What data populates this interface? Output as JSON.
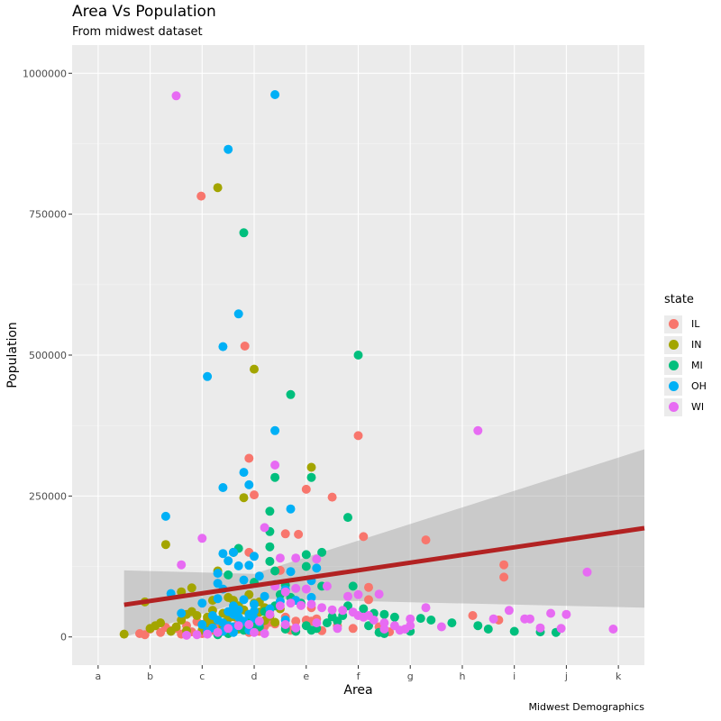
{
  "chart_data": {
    "type": "scatter",
    "title": "Area Vs Population",
    "subtitle": "From midwest dataset",
    "caption": "Midwest Demographics",
    "xlabel": "Area",
    "ylabel": "Population",
    "x_categories": [
      "a",
      "b",
      "c",
      "d",
      "e",
      "f",
      "g",
      "h",
      "i",
      "j",
      "k"
    ],
    "xlim": [
      -0.5,
      10.5
    ],
    "ylim": [
      -50000,
      1050000
    ],
    "y_ticks": [
      0,
      250000,
      500000,
      750000,
      1000000
    ],
    "y_tick_labels": [
      "0",
      "250000",
      "500000",
      "750000",
      "1000000"
    ],
    "grid": true,
    "legend_title": "state",
    "legend_position": "right",
    "series": [
      {
        "name": "IL",
        "color": "#F8766D",
        "points": [
          [
            1.98,
            782000
          ],
          [
            2.82,
            516000
          ],
          [
            2.9,
            317000
          ],
          [
            3.0,
            252000
          ],
          [
            3.6,
            183000
          ],
          [
            3.85,
            182000
          ],
          [
            4.0,
            262000
          ],
          [
            4.5,
            248000
          ],
          [
            5.0,
            357000
          ],
          [
            5.1,
            178000
          ],
          [
            6.3,
            172000
          ],
          [
            7.8,
            128000
          ],
          [
            7.8,
            106000
          ],
          [
            5.2,
            88000
          ],
          [
            5.2,
            66000
          ],
          [
            7.7,
            30000
          ],
          [
            7.2,
            38000
          ],
          [
            4.0,
            30000
          ],
          [
            4.1,
            28000
          ],
          [
            3.6,
            35000
          ],
          [
            3.3,
            26000
          ],
          [
            3.0,
            40000
          ],
          [
            2.9,
            150000
          ],
          [
            3.5,
            118000
          ],
          [
            2.8,
            15000
          ],
          [
            2.6,
            10000
          ],
          [
            2.5,
            7000
          ],
          [
            2.3,
            22000
          ],
          [
            2.0,
            6000
          ],
          [
            1.8,
            9000
          ],
          [
            1.6,
            5000
          ],
          [
            1.4,
            11000
          ],
          [
            1.2,
            8000
          ],
          [
            1.0,
            14000
          ],
          [
            0.8,
            6000
          ],
          [
            0.9,
            4000
          ],
          [
            1.3,
            17000
          ],
          [
            1.7,
            20000
          ],
          [
            2.2,
            12000
          ],
          [
            2.4,
            14000
          ],
          [
            2.7,
            25000
          ],
          [
            3.2,
            19000
          ],
          [
            3.4,
            23000
          ],
          [
            3.8,
            28000
          ],
          [
            4.2,
            32000
          ],
          [
            4.6,
            20000
          ],
          [
            4.9,
            15000
          ],
          [
            5.4,
            18000
          ],
          [
            3.1,
            10000
          ],
          [
            2.1,
            31000
          ],
          [
            1.9,
            27000
          ],
          [
            1.5,
            15000
          ],
          [
            2.9,
            8000
          ],
          [
            3.7,
            12000
          ],
          [
            4.3,
            11000
          ],
          [
            5.6,
            9000
          ],
          [
            3.9,
            56000
          ],
          [
            4.1,
            52000
          ],
          [
            3.3,
            48000
          ],
          [
            2.6,
            40000
          ]
        ]
      },
      {
        "name": "IN",
        "color": "#A3A500",
        "points": [
          [
            2.3,
            797000
          ],
          [
            3.0,
            475000
          ],
          [
            2.8,
            247000
          ],
          [
            4.1,
            301000
          ],
          [
            1.3,
            164000
          ],
          [
            2.6,
            150000
          ],
          [
            2.3,
            117000
          ],
          [
            1.8,
            87000
          ],
          [
            1.6,
            80000
          ],
          [
            2.2,
            65000
          ],
          [
            0.5,
            5000
          ],
          [
            0.9,
            62000
          ],
          [
            1.0,
            15000
          ],
          [
            1.1,
            20000
          ],
          [
            1.2,
            25000
          ],
          [
            1.4,
            10000
          ],
          [
            1.6,
            30000
          ],
          [
            1.7,
            40000
          ],
          [
            1.8,
            45000
          ],
          [
            1.9,
            38000
          ],
          [
            2.0,
            22000
          ],
          [
            2.1,
            35000
          ],
          [
            2.2,
            28000
          ],
          [
            2.4,
            42000
          ],
          [
            2.5,
            33000
          ],
          [
            2.6,
            36000
          ],
          [
            2.7,
            55000
          ],
          [
            2.8,
            48000
          ],
          [
            2.9,
            31000
          ],
          [
            3.0,
            60000
          ],
          [
            3.1,
            44000
          ],
          [
            3.2,
            29000
          ],
          [
            3.3,
            37000
          ],
          [
            3.4,
            26000
          ],
          [
            3.5,
            50000
          ],
          [
            2.0,
            12000
          ],
          [
            1.5,
            18000
          ],
          [
            2.4,
            19000
          ],
          [
            2.7,
            14000
          ],
          [
            3.2,
            52000
          ],
          [
            2.5,
            70000
          ],
          [
            2.9,
            75000
          ],
          [
            3.1,
            62000
          ],
          [
            3.6,
            20000
          ],
          [
            2.1,
            24000
          ],
          [
            1.7,
            11000
          ],
          [
            2.6,
            65000
          ],
          [
            2.2,
            47000
          ]
        ]
      },
      {
        "name": "MI",
        "color": "#00BF7D",
        "points": [
          [
            2.8,
            717000
          ],
          [
            5.0,
            500000
          ],
          [
            3.7,
            430000
          ],
          [
            4.1,
            283000
          ],
          [
            3.4,
            283000
          ],
          [
            3.3,
            223000
          ],
          [
            4.3,
            150000
          ],
          [
            4.0,
            146000
          ],
          [
            3.3,
            187000
          ],
          [
            3.3,
            160000
          ],
          [
            2.7,
            157000
          ],
          [
            4.8,
            212000
          ],
          [
            2.6,
            150000
          ],
          [
            2.5,
            110000
          ],
          [
            3.3,
            134000
          ],
          [
            3.4,
            117000
          ],
          [
            4.0,
            125000
          ],
          [
            4.3,
            90000
          ],
          [
            3.6,
            92000
          ],
          [
            3.0,
            97000
          ],
          [
            4.9,
            90000
          ],
          [
            5.5,
            40000
          ],
          [
            5.1,
            50000
          ],
          [
            5.2,
            20000
          ],
          [
            5.4,
            8000
          ],
          [
            5.5,
            6000
          ],
          [
            6.0,
            10000
          ],
          [
            6.2,
            33000
          ],
          [
            6.4,
            30000
          ],
          [
            6.8,
            25000
          ],
          [
            7.3,
            20000
          ],
          [
            7.5,
            14000
          ],
          [
            8.0,
            10000
          ],
          [
            8.5,
            9000
          ],
          [
            8.8,
            8000
          ],
          [
            4.0,
            20000
          ],
          [
            4.2,
            15000
          ],
          [
            4.4,
            25000
          ],
          [
            4.6,
            28000
          ],
          [
            4.8,
            55000
          ],
          [
            3.9,
            60000
          ],
          [
            3.7,
            70000
          ],
          [
            3.5,
            75000
          ],
          [
            3.2,
            45000
          ],
          [
            3.0,
            22000
          ],
          [
            2.9,
            30000
          ],
          [
            2.7,
            18000
          ],
          [
            2.5,
            6000
          ],
          [
            2.3,
            4000
          ],
          [
            2.1,
            8000
          ],
          [
            3.6,
            14000
          ],
          [
            3.8,
            10000
          ],
          [
            4.1,
            12000
          ],
          [
            4.5,
            36000
          ],
          [
            4.7,
            38000
          ],
          [
            5.3,
            42000
          ],
          [
            5.7,
            35000
          ],
          [
            3.4,
            55000
          ],
          [
            3.1,
            18000
          ],
          [
            2.8,
            12000
          ]
        ]
      },
      {
        "name": "OH",
        "color": "#00B0F6",
        "points": [
          [
            3.4,
            962000
          ],
          [
            2.5,
            865000
          ],
          [
            2.7,
            573000
          ],
          [
            2.4,
            515000
          ],
          [
            2.1,
            462000
          ],
          [
            3.4,
            366000
          ],
          [
            2.8,
            292000
          ],
          [
            2.9,
            270000
          ],
          [
            2.4,
            265000
          ],
          [
            3.7,
            227000
          ],
          [
            1.3,
            214000
          ],
          [
            2.4,
            148000
          ],
          [
            2.6,
            150000
          ],
          [
            3.0,
            143000
          ],
          [
            2.7,
            126000
          ],
          [
            2.9,
            127000
          ],
          [
            2.5,
            135000
          ],
          [
            3.7,
            116000
          ],
          [
            3.1,
            108000
          ],
          [
            2.3,
            113000
          ],
          [
            4.2,
            122000
          ],
          [
            4.1,
            100000
          ],
          [
            3.4,
            93000
          ],
          [
            2.8,
            101000
          ],
          [
            1.4,
            77000
          ],
          [
            1.6,
            42000
          ],
          [
            2.0,
            60000
          ],
          [
            2.3,
            68000
          ],
          [
            2.6,
            55000
          ],
          [
            2.8,
            66000
          ],
          [
            3.0,
            58000
          ],
          [
            3.2,
            72000
          ],
          [
            3.5,
            63000
          ],
          [
            3.8,
            65000
          ],
          [
            4.1,
            70000
          ],
          [
            2.2,
            38000
          ],
          [
            2.3,
            30000
          ],
          [
            2.4,
            25000
          ],
          [
            2.5,
            20000
          ],
          [
            2.6,
            18000
          ],
          [
            2.7,
            35000
          ],
          [
            2.8,
            28000
          ],
          [
            2.9,
            40000
          ],
          [
            3.0,
            33000
          ],
          [
            3.1,
            26000
          ],
          [
            2.0,
            22000
          ],
          [
            2.2,
            16000
          ],
          [
            2.5,
            45000
          ],
          [
            2.6,
            40000
          ],
          [
            2.7,
            48000
          ],
          [
            3.3,
            50000
          ],
          [
            2.4,
            85000
          ],
          [
            2.3,
            95000
          ],
          [
            3.6,
            84000
          ],
          [
            2.1,
            10000
          ],
          [
            2.9,
            12000
          ],
          [
            3.6,
            30000
          ],
          [
            2.4,
            10000
          ],
          [
            2.6,
            8000
          ],
          [
            3.0,
            46000
          ]
        ]
      },
      {
        "name": "WI",
        "color": "#E76BF3",
        "points": [
          [
            1.5,
            960000
          ],
          [
            7.3,
            366000
          ],
          [
            3.4,
            305000
          ],
          [
            3.2,
            194000
          ],
          [
            2.0,
            175000
          ],
          [
            1.6,
            128000
          ],
          [
            3.8,
            140000
          ],
          [
            3.5,
            140000
          ],
          [
            4.2,
            138000
          ],
          [
            3.8,
            86000
          ],
          [
            4.0,
            85000
          ],
          [
            3.4,
            90000
          ],
          [
            3.6,
            80000
          ],
          [
            4.4,
            90000
          ],
          [
            5.0,
            75000
          ],
          [
            5.4,
            76000
          ],
          [
            9.4,
            115000
          ],
          [
            6.3,
            52000
          ],
          [
            7.9,
            47000
          ],
          [
            7.6,
            32000
          ],
          [
            8.2,
            32000
          ],
          [
            8.3,
            32000
          ],
          [
            8.5,
            16000
          ],
          [
            8.7,
            42000
          ],
          [
            9.0,
            40000
          ],
          [
            8.9,
            15000
          ],
          [
            9.9,
            14000
          ],
          [
            6.0,
            32000
          ],
          [
            6.0,
            20000
          ],
          [
            6.6,
            18000
          ],
          [
            5.9,
            14000
          ],
          [
            5.7,
            20000
          ],
          [
            5.5,
            25000
          ],
          [
            5.3,
            30000
          ],
          [
            5.1,
            35000
          ],
          [
            5.0,
            38000
          ],
          [
            4.9,
            44000
          ],
          [
            4.7,
            47000
          ],
          [
            4.5,
            48000
          ],
          [
            4.3,
            52000
          ],
          [
            4.1,
            58000
          ],
          [
            3.9,
            56000
          ],
          [
            3.7,
            60000
          ],
          [
            3.5,
            55000
          ],
          [
            3.3,
            40000
          ],
          [
            3.1,
            28000
          ],
          [
            2.9,
            22000
          ],
          [
            2.7,
            20000
          ],
          [
            2.5,
            15000
          ],
          [
            2.3,
            8000
          ],
          [
            2.1,
            5000
          ],
          [
            1.9,
            4000
          ],
          [
            1.7,
            3000
          ],
          [
            3.0,
            8000
          ],
          [
            3.2,
            6000
          ],
          [
            3.6,
            22000
          ],
          [
            4.6,
            15000
          ],
          [
            5.2,
            38000
          ],
          [
            5.5,
            14000
          ],
          [
            5.8,
            12000
          ],
          [
            4.2,
            25000
          ],
          [
            4.8,
            72000
          ],
          [
            3.8,
            16000
          ]
        ]
      }
    ],
    "smooth": {
      "color": "#B22222",
      "line": [
        [
          0.5,
          57000
        ],
        [
          10.5,
          193000
        ]
      ],
      "ribbon": [
        [
          0.5,
          0,
          118000
        ],
        [
          3.0,
          68000,
          112000
        ],
        [
          10.5,
          52000,
          333000
        ]
      ]
    }
  }
}
